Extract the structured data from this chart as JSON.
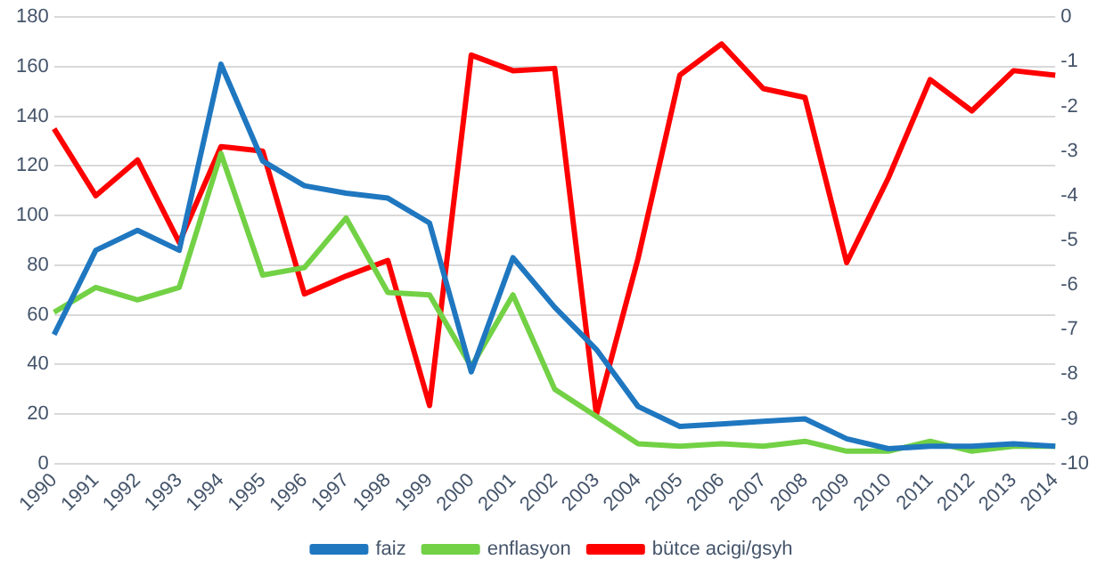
{
  "chart_data": {
    "type": "line",
    "categories": [
      "1990",
      "1991",
      "1992",
      "1993",
      "1994",
      "1995",
      "1996",
      "1997",
      "1998",
      "1999",
      "2000",
      "2001",
      "2002",
      "2003",
      "2004",
      "2005",
      "2006",
      "2007",
      "2008",
      "2009",
      "2010",
      "2011",
      "2012",
      "2013",
      "2014"
    ],
    "series": [
      {
        "name": "faiz",
        "color": "#1f77c0",
        "values": [
          52,
          86,
          94,
          86,
          161,
          122,
          112,
          109,
          107,
          97,
          37,
          83,
          63,
          46,
          23,
          15,
          16,
          17,
          18,
          10,
          6,
          7,
          7,
          8,
          7
        ]
      },
      {
        "name": "enflasyon",
        "color": "#72d145",
        "values": [
          61,
          71,
          66,
          71,
          125,
          76,
          79,
          99,
          69,
          68,
          39,
          68,
          30,
          19,
          8,
          7,
          8,
          7,
          9,
          5,
          5,
          9,
          5,
          7,
          7
        ]
      },
      {
        "name": "bütce acigi/gsyh",
        "color": "#ff0000",
        "axis": "y2",
        "values": [
          -2.5,
          -4.0,
          -3.2,
          -5.05,
          -2.9,
          -3.0,
          -6.2,
          -5.8,
          -5.45,
          -8.7,
          -0.85,
          -1.2,
          -1.15,
          -8.9,
          -5.4,
          -1.3,
          -0.6,
          -1.6,
          -1.8,
          -5.5,
          -3.6,
          -1.4,
          -2.1,
          -1.2,
          -1.3
        ]
      }
    ],
    "ylim": [
      0,
      180
    ],
    "yticks": [
      0,
      20,
      40,
      60,
      80,
      100,
      120,
      140,
      160,
      180
    ],
    "y2lim": [
      -10,
      0
    ],
    "y2ticks": [
      -10,
      -9,
      -8,
      -7,
      -6,
      -5,
      -4,
      -3,
      -2,
      -1,
      0
    ],
    "grid": "y",
    "legend": "bottom",
    "marker": "none",
    "line_style": "solid"
  }
}
